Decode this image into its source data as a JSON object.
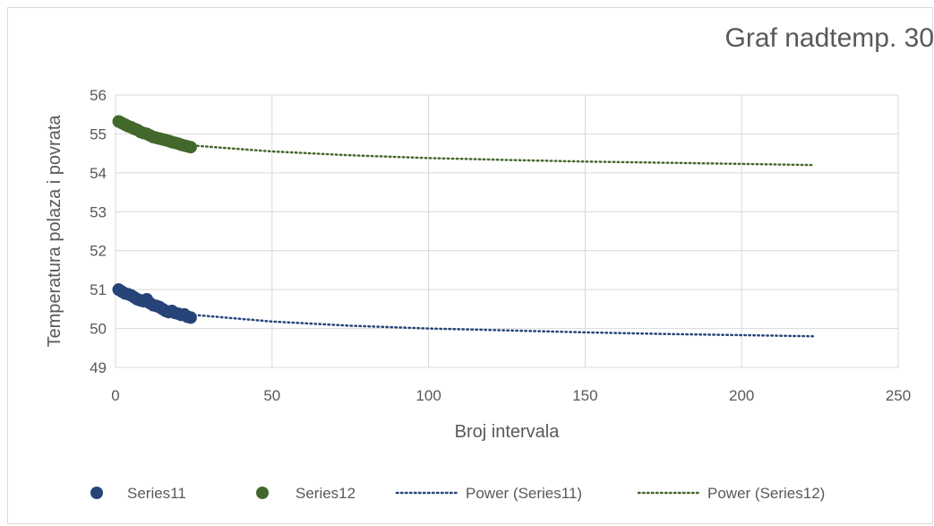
{
  "chart_data": {
    "type": "scatter",
    "title": "Graf nadtemp. 30",
    "xlabel": "Broj intervala",
    "ylabel": "Temperatura polaza i povrata",
    "xlim": [
      0,
      250
    ],
    "ylim": [
      49,
      56
    ],
    "x_ticks": [
      0,
      50,
      100,
      150,
      200,
      250
    ],
    "y_ticks": [
      49,
      50,
      51,
      52,
      53,
      54,
      55,
      56
    ],
    "grid": true,
    "legend_position": "bottom",
    "series": [
      {
        "name": "Series11",
        "kind": "scatter",
        "color": "#264478",
        "x": [
          1,
          2,
          3,
          4,
          5,
          6,
          7,
          8,
          9,
          10,
          11,
          12,
          13,
          14,
          15,
          16,
          17,
          18,
          19,
          20,
          21,
          22,
          23,
          24
        ],
        "y": [
          51.0,
          50.95,
          50.9,
          50.88,
          50.85,
          50.8,
          50.75,
          50.72,
          50.7,
          50.75,
          50.65,
          50.6,
          50.58,
          50.55,
          50.5,
          50.45,
          50.42,
          50.45,
          50.4,
          50.38,
          50.35,
          50.36,
          50.3,
          50.28
        ]
      },
      {
        "name": "Series12",
        "kind": "scatter",
        "color": "#43682b",
        "x": [
          1,
          2,
          3,
          4,
          5,
          6,
          7,
          8,
          9,
          10,
          11,
          12,
          13,
          14,
          15,
          16,
          17,
          18,
          19,
          20,
          21,
          22,
          23,
          24
        ],
        "y": [
          55.32,
          55.28,
          55.24,
          55.2,
          55.17,
          55.13,
          55.1,
          55.05,
          55.02,
          55.0,
          54.96,
          54.92,
          54.9,
          54.88,
          54.86,
          54.84,
          54.82,
          54.79,
          54.77,
          54.75,
          54.72,
          54.7,
          54.68,
          54.66
        ]
      },
      {
        "name": "Power (Series11)",
        "kind": "trendline",
        "color": "#264478",
        "x": [
          1,
          2,
          5,
          10,
          25,
          50,
          75,
          100,
          125,
          150,
          175,
          200,
          223
        ],
        "y": [
          51.1,
          50.93,
          50.7,
          50.55,
          50.35,
          50.18,
          50.07,
          50.0,
          49.95,
          49.9,
          49.86,
          49.83,
          49.8
        ]
      },
      {
        "name": "Power (Series12)",
        "kind": "trendline",
        "color": "#43682b",
        "x": [
          1,
          2,
          5,
          10,
          25,
          50,
          75,
          100,
          125,
          150,
          175,
          200,
          223
        ],
        "y": [
          55.35,
          55.23,
          55.05,
          54.9,
          54.7,
          54.55,
          54.45,
          54.38,
          54.33,
          54.29,
          54.26,
          54.23,
          54.2
        ]
      }
    ]
  }
}
